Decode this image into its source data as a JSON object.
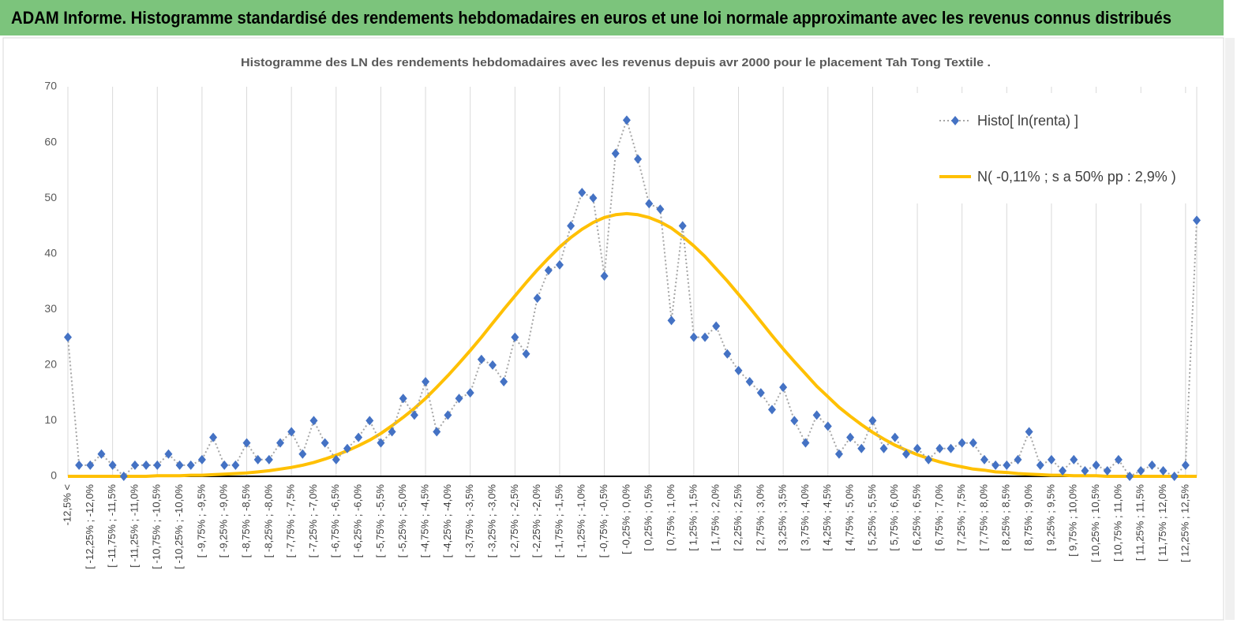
{
  "chart_data": {
    "type": "line",
    "title": "ADAM Informe. Histogramme standardisé des rendements hebdomadaires en euros et une loi normale approximante avec les revenus connus distribués",
    "subtitle": "Histogramme des LN des rendements hebdomadaires avec les revenus depuis avr 2000 pour le placement Tah Tong Textile .",
    "categories": [
      "-12,5% <",
      null,
      "[ -12,25% ; -12,0%",
      null,
      "[ -11,75% ; -11,5%",
      null,
      "[ -11,25% ; -11,0%",
      null,
      "[ -10,75% ; -10,5%",
      null,
      "[ -10,25% ; -10,0%",
      null,
      "[ -9,75% ; -9,5%",
      null,
      "[ -9,25% ; -9,0%",
      null,
      "[ -8,75% ; -8,5%",
      null,
      "[ -8,25% ; -8,0%",
      null,
      "[ -7,75% ; -7,5%",
      null,
      "[ -7,25% ; -7,0%",
      null,
      "[ -6,75% ; -6,5%",
      null,
      "[ -6,25% ; -6,0%",
      null,
      "[ -5,75% ; -5,5%",
      null,
      "[ -5,25% ; -5,0%",
      null,
      "[ -4,75% ; -4,5%",
      null,
      "[ -4,25% ; -4,0%",
      null,
      "[ -3,75% ; -3,5%",
      null,
      "[ -3,25% ; -3,0%",
      null,
      "[ -2,75% ; -2,5%",
      null,
      "[ -2,25% ; -2,0%",
      null,
      "[ -1,75% ; -1,5%",
      null,
      "[ -1,25% ; -1,0%",
      null,
      "[ -0,75% ; -0,5%",
      null,
      "[ -0,25% ; 0,0%",
      null,
      "[ 0,25% ; 0,5%",
      null,
      "[ 0,75% ; 1,0%",
      null,
      "[ 1,25% ; 1,5%",
      null,
      "[ 1,75% ; 2,0%",
      null,
      "[ 2,25% ; 2,5%",
      null,
      "[ 2,75% ; 3,0%",
      null,
      "[ 3,25% ; 3,5%",
      null,
      "[ 3,75% ; 4,0%",
      null,
      "[ 4,25% ; 4,5%",
      null,
      "[ 4,75% ; 5,0%",
      null,
      "[ 5,25% ; 5,5%",
      null,
      "[ 5,75% ; 6,0%",
      null,
      "[ 6,25% ; 6,5%",
      null,
      "[ 6,75% ; 7,0%",
      null,
      "[ 7,25% ; 7,5%",
      null,
      "[ 7,75% ; 8,0%",
      null,
      "[ 8,25% ; 8,5%",
      null,
      "[ 8,75% ; 9,0%",
      null,
      "[ 9,25% ; 9,5%",
      null,
      "[ 9,75% ; 10,0%",
      null,
      "[ 10,25% ; 10,5%",
      null,
      "[ 10,75% ; 11,0%",
      null,
      "[ 11,25% ; 11,5%",
      null,
      "[ 11,75% ; 12,0%",
      null,
      "[ 12,25% ; 12,5%",
      null
    ],
    "series": [
      {
        "name": "Histo[ ln(renta) ]",
        "color": "#4472c4",
        "line_color": "#a6a6a6",
        "values": [
          25,
          2,
          2,
          4,
          2,
          0,
          2,
          2,
          2,
          4,
          2,
          2,
          3,
          7,
          2,
          2,
          6,
          3,
          3,
          6,
          8,
          4,
          10,
          6,
          3,
          5,
          7,
          10,
          6,
          8,
          14,
          11,
          17,
          8,
          11,
          14,
          15,
          21,
          20,
          17,
          25,
          22,
          32,
          37,
          38,
          45,
          51,
          50,
          36,
          58,
          64,
          57,
          49,
          48,
          28,
          45,
          25,
          25,
          27,
          22,
          19,
          17,
          15,
          12,
          16,
          10,
          6,
          11,
          9,
          4,
          7,
          5,
          10,
          5,
          7,
          4,
          5,
          3,
          5,
          5,
          6,
          6,
          3,
          2,
          2,
          3,
          8,
          2,
          3,
          1,
          3,
          1,
          2,
          1,
          3,
          0,
          1,
          2,
          1,
          0,
          2,
          46
        ]
      },
      {
        "name": "N( -0,11% ; s a 50% pp : 2,9% )",
        "color": "#ffc000",
        "values": [
          0,
          0,
          0,
          0,
          0,
          0,
          0,
          0,
          0.1,
          0.1,
          0.1,
          0.2,
          0.2,
          0.3,
          0.4,
          0.5,
          0.6,
          0.8,
          1.0,
          1.3,
          1.6,
          2.0,
          2.5,
          3.1,
          3.8,
          4.6,
          5.5,
          6.5,
          7.7,
          9.1,
          10.6,
          12.2,
          14.0,
          16.0,
          18.1,
          20.3,
          22.6,
          25.0,
          27.5,
          30.0,
          32.4,
          34.8,
          37.1,
          39.2,
          41.2,
          42.9,
          44.4,
          45.6,
          46.5,
          47.0,
          47.2,
          47.0,
          46.5,
          45.7,
          44.6,
          43.1,
          41.4,
          39.5,
          37.3,
          35.1,
          32.7,
          30.3,
          27.8,
          25.3,
          22.9,
          20.6,
          18.4,
          16.2,
          14.3,
          12.4,
          10.8,
          9.3,
          7.9,
          6.7,
          5.6,
          4.7,
          3.9,
          3.2,
          2.6,
          2.1,
          1.7,
          1.3,
          1.1,
          0.8,
          0.7,
          0.5,
          0.4,
          0.3,
          0.2,
          0.2,
          0.1,
          0.1,
          0.1,
          0,
          0,
          0,
          0,
          0,
          0,
          0,
          0,
          0
        ]
      }
    ],
    "ylim": [
      0,
      70
    ],
    "yticks": [
      0,
      10,
      20,
      30,
      40,
      50,
      60,
      70
    ],
    "grid": "x",
    "legend": "top-right"
  }
}
